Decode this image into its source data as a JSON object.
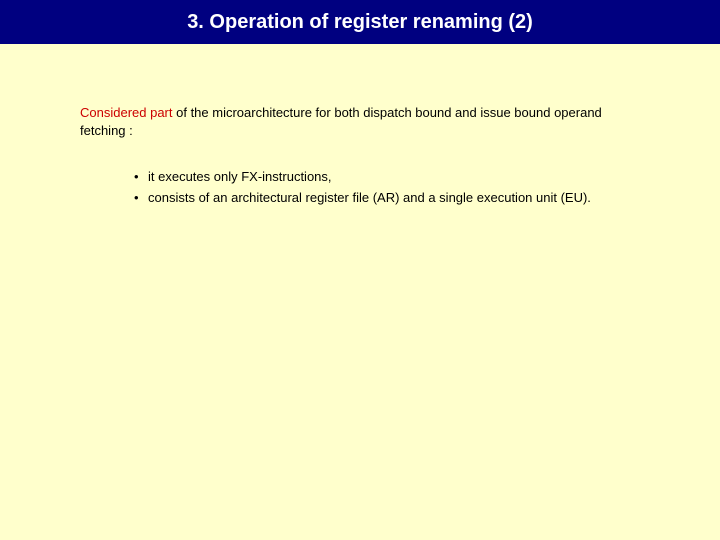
{
  "slide": {
    "title": "3. Operation of register renaming (2)",
    "title_bg": "#000080",
    "title_color": "#ffffff",
    "page_bg": "#ffffcc",
    "intro_highlight": "Considered part",
    "intro_highlight_color": "#cc0000",
    "intro_rest": " of the microarchitecture for both dispatch bound and issue bound operand fetching :",
    "bullets": [
      {
        "marker": "•",
        "text": "it executes only FX-instructions,"
      },
      {
        "marker": "•",
        "text": "consists of an architectural register file (AR) and a single execution unit (EU)."
      }
    ],
    "body_fontsize": 13,
    "title_fontsize": 20
  }
}
